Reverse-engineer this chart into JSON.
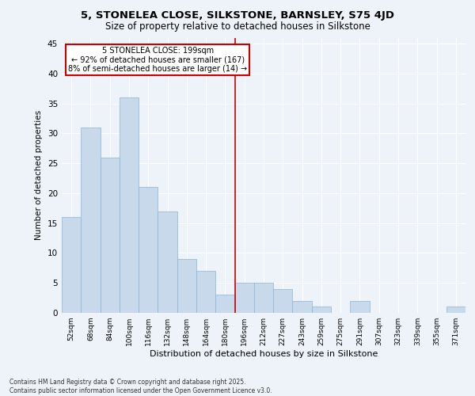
{
  "title": "5, STONELEA CLOSE, SILKSTONE, BARNSLEY, S75 4JD",
  "subtitle": "Size of property relative to detached houses in Silkstone",
  "xlabel": "Distribution of detached houses by size in Silkstone",
  "ylabel": "Number of detached properties",
  "bins": [
    "52sqm",
    "68sqm",
    "84sqm",
    "100sqm",
    "116sqm",
    "132sqm",
    "148sqm",
    "164sqm",
    "180sqm",
    "196sqm",
    "212sqm",
    "227sqm",
    "243sqm",
    "259sqm",
    "275sqm",
    "291sqm",
    "307sqm",
    "323sqm",
    "339sqm",
    "355sqm",
    "371sqm"
  ],
  "values": [
    16,
    31,
    26,
    36,
    21,
    17,
    9,
    7,
    3,
    5,
    5,
    4,
    2,
    1,
    0,
    2,
    0,
    0,
    0,
    0,
    1
  ],
  "bar_color": "#c9d9ec",
  "bar_edge_color": "#8ab4d4",
  "property_line_label": "5 STONELEA CLOSE: 199sqm",
  "annotation_line1": "← 92% of detached houses are smaller (167)",
  "annotation_line2": "8% of semi-detached houses are larger (14) →",
  "annotation_box_edge_color": "#cc0000",
  "vline_color": "#cc0000",
  "background_color": "#eef3f9",
  "grid_color": "#ffffff",
  "ylim": [
    0,
    46
  ],
  "footer": "Contains HM Land Registry data © Crown copyright and database right 2025.\nContains public sector information licensed under the Open Government Licence v3.0."
}
